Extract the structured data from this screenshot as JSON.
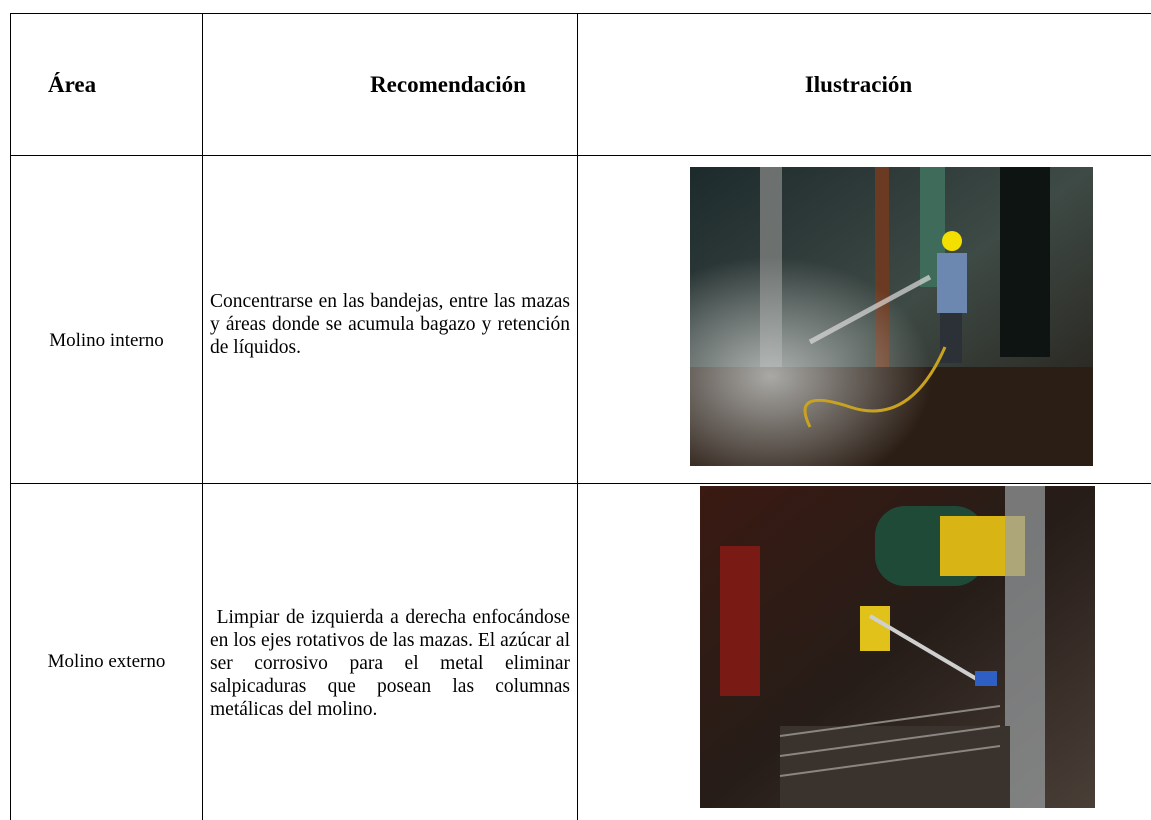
{
  "table": {
    "header": [
      "Área",
      "Recomendación",
      "Ilustración"
    ],
    "rows": [
      [
        "Molino interno",
        "Concentrarse en las bandejas, entre las mazas y áreas donde se acumula bagazo y retención de líquidos."
      ],
      [
        "Molino externo",
        " Limpiar de izquierda a derecha enfocándose en los ejes rotativos de las mazas. El azúcar al ser corrosivo para el metal eliminar salpicaduras que posean las columnas metálicas del molino."
      ]
    ]
  }
}
